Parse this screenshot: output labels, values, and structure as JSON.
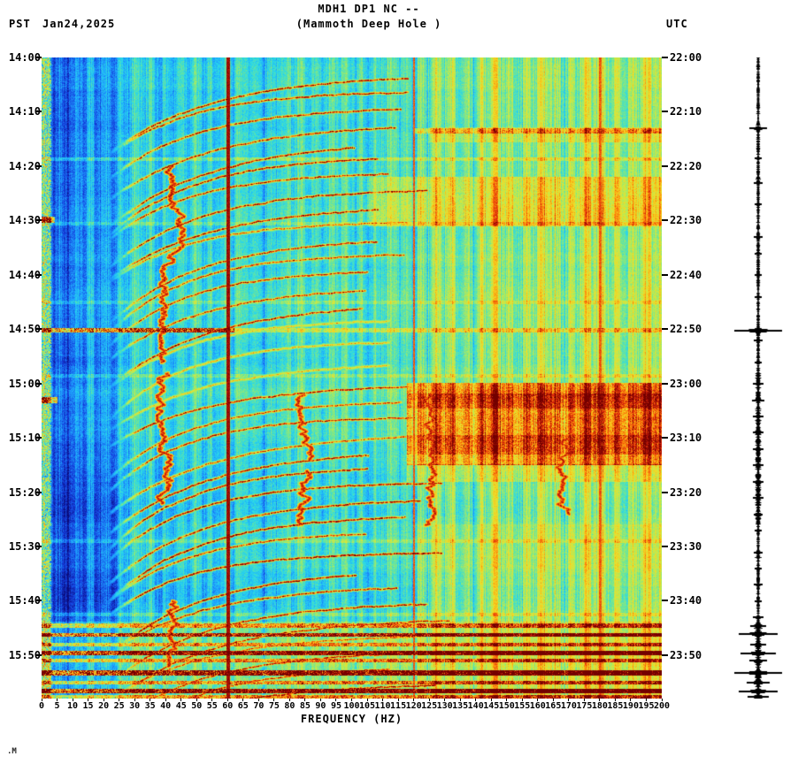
{
  "header": {
    "title_line1": "MDH1 DP1 NC --",
    "title_line2": "(Mammoth Deep Hole )",
    "left_timezone": "PST",
    "date": "Jan24,2025",
    "right_timezone": "UTC"
  },
  "footer_mark": ".M",
  "chart_data": {
    "type": "heatmap",
    "title": "MDH1 DP1 NC -- (Mammoth Deep Hole )",
    "xlabel": "FREQUENCY (HZ)",
    "x_range_hz": [
      0,
      200
    ],
    "x_ticks_hz": [
      0,
      5,
      10,
      15,
      20,
      25,
      30,
      35,
      40,
      45,
      50,
      55,
      60,
      65,
      70,
      75,
      80,
      85,
      90,
      95,
      100,
      105,
      110,
      115,
      120,
      125,
      130,
      135,
      140,
      145,
      150,
      155,
      160,
      165,
      170,
      175,
      180,
      185,
      190,
      195,
      200
    ],
    "duration_minutes": 118,
    "tick_interval_minutes": 10,
    "left_axis": {
      "timezone": "PST",
      "date": "Jan24,2025",
      "tick_labels": [
        "14:00",
        "14:10",
        "14:20",
        "14:30",
        "14:40",
        "14:50",
        "15:00",
        "15:10",
        "15:20",
        "15:30",
        "15:40",
        "15:50"
      ]
    },
    "right_axis": {
      "timezone": "UTC",
      "tick_labels": [
        "22:00",
        "22:10",
        "22:20",
        "22:30",
        "22:40",
        "22:50",
        "23:00",
        "23:10",
        "23:20",
        "23:30",
        "23:40",
        "23:50"
      ]
    },
    "colormap": "jet",
    "colormap_stops": [
      {
        "v": 0.0,
        "c": "#0a0a78"
      },
      {
        "v": 0.12,
        "c": "#143cdc"
      },
      {
        "v": 0.25,
        "c": "#1ea0ff"
      },
      {
        "v": 0.35,
        "c": "#28d7eb"
      },
      {
        "v": 0.45,
        "c": "#6ee696"
      },
      {
        "v": 0.55,
        "c": "#beeb50"
      },
      {
        "v": 0.65,
        "c": "#f0dc28"
      },
      {
        "v": 0.72,
        "c": "#fab414"
      },
      {
        "v": 0.8,
        "c": "#fa6e0a"
      },
      {
        "v": 0.88,
        "c": "#d7230a"
      },
      {
        "v": 1.0,
        "c": "#730000"
      }
    ],
    "spectral_lines_hz": [
      60,
      120,
      180
    ],
    "glide_arcs": {
      "f_start_hz": 20,
      "f_end_hz_range": [
        100,
        135
      ],
      "top_times_min": [
        3,
        6,
        9,
        12,
        15,
        18,
        21,
        24,
        27,
        30,
        33,
        36,
        39,
        42,
        45,
        48,
        52,
        56,
        60,
        63,
        66,
        69,
        72,
        75,
        78,
        81,
        84,
        87,
        91,
        94,
        97,
        100,
        103,
        106,
        109,
        112,
        115
      ]
    },
    "tremor_squiggles": [
      {
        "f_hz": 42,
        "t0_min": 20,
        "t1_min": 56
      },
      {
        "f_hz": 41,
        "t0_min": 58,
        "t1_min": 82
      },
      {
        "f_hz": 85,
        "t0_min": 62,
        "t1_min": 74
      },
      {
        "f_hz": 86,
        "t0_min": 76,
        "t1_min": 86
      },
      {
        "f_hz": 125,
        "t0_min": 62,
        "t1_min": 86
      },
      {
        "f_hz": 170,
        "t0_min": 70,
        "t1_min": 84
      },
      {
        "f_hz": 42,
        "t0_min": 100,
        "t1_min": 112
      }
    ],
    "hot_regions": [
      {
        "m0": 13,
        "m1": 15.5,
        "f0": 125,
        "f1": 200,
        "boost": 0.1
      },
      {
        "m0": 22,
        "m1": 31,
        "f0": 105,
        "f1": 200,
        "boost": 0.13
      },
      {
        "m0": 60,
        "m1": 75,
        "f0": 118,
        "f1": 200,
        "boost": 0.26
      },
      {
        "m0": 62,
        "m1": 64.5,
        "f0": 118,
        "f1": 200,
        "boost": 0.1
      },
      {
        "m0": 69.5,
        "m1": 73,
        "f0": 118,
        "f1": 200,
        "boost": 0.1
      },
      {
        "m0": 75,
        "m1": 78,
        "f0": 118,
        "f1": 200,
        "boost": 0.12
      },
      {
        "m0": 86,
        "m1": 104,
        "f0": 120,
        "f1": 200,
        "boost": 0.04
      },
      {
        "m0": 104,
        "m1": 118,
        "f0": 0,
        "f1": 200,
        "boost": 0.1
      }
    ],
    "bands": [
      {
        "m": 13.5,
        "f0": 120,
        "f1": 200,
        "boost": 0.18,
        "h": 4
      },
      {
        "m": 18.6,
        "f0": 0,
        "f1": 200,
        "boost": 0.12,
        "h": 2
      },
      {
        "m": 29.8,
        "f0": 0,
        "f1": 4,
        "boost": 0.42,
        "h": 5
      },
      {
        "m": 30.5,
        "f0": 0,
        "f1": 200,
        "boost": 0.09,
        "h": 2
      },
      {
        "m": 45,
        "f0": 0,
        "f1": 200,
        "boost": 0.08,
        "h": 2
      },
      {
        "m": 50.2,
        "f0": 0,
        "f1": 62,
        "boost": 0.52,
        "h": 3
      },
      {
        "m": 50.2,
        "f0": 62,
        "f1": 200,
        "boost": 0.18,
        "h": 3
      },
      {
        "m": 58.5,
        "f0": 0,
        "f1": 200,
        "boost": 0.1,
        "h": 2
      },
      {
        "m": 63,
        "f0": 0,
        "f1": 5,
        "boost": 0.45,
        "h": 5
      },
      {
        "m": 89,
        "f0": 0,
        "f1": 200,
        "boost": 0.08,
        "h": 2
      },
      {
        "m": 102.5,
        "f0": 0,
        "f1": 200,
        "boost": 0.1,
        "h": 2
      },
      {
        "m": 104.5,
        "f0": 0,
        "f1": 200,
        "boost": 0.3,
        "h": 3
      },
      {
        "m": 106.2,
        "f0": 0,
        "f1": 200,
        "boost": 0.5,
        "h": 3
      },
      {
        "m": 108,
        "f0": 0,
        "f1": 200,
        "boost": 0.28,
        "h": 2
      },
      {
        "m": 109.6,
        "f0": 0,
        "f1": 200,
        "boost": 0.52,
        "h": 3
      },
      {
        "m": 111,
        "f0": 0,
        "f1": 200,
        "boost": 0.3,
        "h": 2
      },
      {
        "m": 113.2,
        "f0": 0,
        "f1": 200,
        "boost": 0.55,
        "h": 4
      },
      {
        "m": 115,
        "f0": 0,
        "f1": 200,
        "boost": 0.32,
        "h": 2
      },
      {
        "m": 116.6,
        "f0": 0,
        "f1": 200,
        "boost": 0.55,
        "h": 3
      },
      {
        "m": 117.6,
        "f0": 0,
        "f1": 200,
        "boost": 0.3,
        "h": 2
      }
    ],
    "seismogram_spikes": [
      {
        "t_min": 13,
        "amp": 10
      },
      {
        "t_min": 18.5,
        "amp": 4
      },
      {
        "t_min": 23,
        "amp": 5
      },
      {
        "t_min": 27,
        "amp": 4
      },
      {
        "t_min": 33,
        "amp": 5
      },
      {
        "t_min": 36,
        "amp": 4
      },
      {
        "t_min": 40,
        "amp": 4
      },
      {
        "t_min": 44,
        "amp": 4
      },
      {
        "t_min": 50.2,
        "amp": 27
      },
      {
        "t_min": 52,
        "amp": 5
      },
      {
        "t_min": 56,
        "amp": 4
      },
      {
        "t_min": 60,
        "amp": 6
      },
      {
        "t_min": 63,
        "amp": 7
      },
      {
        "t_min": 66,
        "amp": 6
      },
      {
        "t_min": 69,
        "amp": 6
      },
      {
        "t_min": 72,
        "amp": 6
      },
      {
        "t_min": 75,
        "amp": 6
      },
      {
        "t_min": 78,
        "amp": 6
      },
      {
        "t_min": 81,
        "amp": 6
      },
      {
        "t_min": 84,
        "amp": 5
      },
      {
        "t_min": 87,
        "amp": 4
      },
      {
        "t_min": 91,
        "amp": 5
      },
      {
        "t_min": 94,
        "amp": 4
      },
      {
        "t_min": 97,
        "amp": 5
      },
      {
        "t_min": 100,
        "amp": 4
      },
      {
        "t_min": 103,
        "amp": 6
      },
      {
        "t_min": 104.5,
        "amp": 9
      },
      {
        "t_min": 106,
        "amp": 22
      },
      {
        "t_min": 108,
        "amp": 9
      },
      {
        "t_min": 109.6,
        "amp": 20
      },
      {
        "t_min": 111,
        "amp": 10
      },
      {
        "t_min": 113.2,
        "amp": 27
      },
      {
        "t_min": 115,
        "amp": 13
      },
      {
        "t_min": 116.6,
        "amp": 22
      },
      {
        "t_min": 117.6,
        "amp": 12
      }
    ]
  }
}
